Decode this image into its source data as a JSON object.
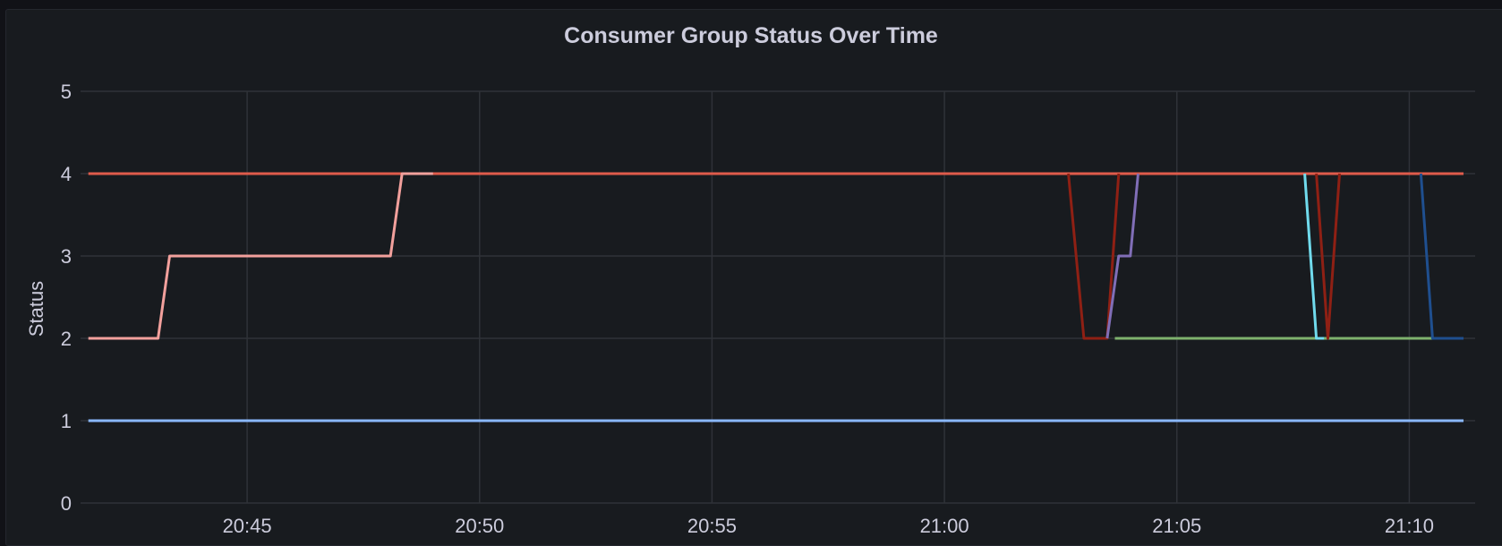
{
  "chart_data": {
    "type": "line",
    "title": "Consumer Group Status Over Time",
    "xlabel": "",
    "ylabel": "Status",
    "xlim": [
      "20:41:25",
      "21:11:25"
    ],
    "ylim": [
      0,
      5
    ],
    "y_ticks": [
      0,
      1,
      2,
      3,
      4,
      5
    ],
    "x_ticks": [
      "20:45",
      "20:50",
      "20:55",
      "21:00",
      "21:05",
      "21:10"
    ],
    "grid": true,
    "legend": "none",
    "series": [
      {
        "color": "#8ab8ff",
        "points": [
          [
            "20:41:35",
            1
          ],
          [
            "21:11:10",
            1
          ]
        ]
      },
      {
        "color": "#e05b4b",
        "points": [
          [
            "20:41:35",
            4
          ],
          [
            "21:11:10",
            4
          ]
        ]
      },
      {
        "color": "#f2a09c",
        "points": [
          [
            "20:41:35",
            2
          ],
          [
            "20:43:05",
            2
          ],
          [
            "20:43:20",
            3
          ],
          [
            "20:48:05",
            3
          ],
          [
            "20:48:20",
            4
          ],
          [
            "20:49:00",
            4
          ]
        ]
      },
      {
        "color": "#8f2014",
        "points": [
          [
            "21:02:40",
            4
          ],
          [
            "21:03:00",
            2
          ],
          [
            "21:03:30",
            2
          ],
          [
            "21:03:45",
            4
          ]
        ]
      },
      {
        "color": "#806eb7",
        "points": [
          [
            "21:03:30",
            2
          ],
          [
            "21:03:45",
            3
          ],
          [
            "21:04:00",
            3
          ],
          [
            "21:04:10",
            4
          ]
        ]
      },
      {
        "color": "#7eb26d",
        "points": [
          [
            "21:03:40",
            2
          ],
          [
            "21:10:30",
            2
          ]
        ]
      },
      {
        "color": "#70dbed",
        "points": [
          [
            "21:07:45",
            4
          ],
          [
            "21:08:00",
            2
          ],
          [
            "21:08:10",
            2
          ]
        ]
      },
      {
        "color": "#8f2014",
        "points": [
          [
            "21:08:00",
            4
          ],
          [
            "21:08:15",
            2
          ],
          [
            "21:08:30",
            4
          ]
        ]
      },
      {
        "color": "#1f4f8f",
        "points": [
          [
            "21:10:15",
            4
          ],
          [
            "21:10:30",
            2
          ],
          [
            "21:11:10",
            2
          ]
        ]
      }
    ]
  }
}
